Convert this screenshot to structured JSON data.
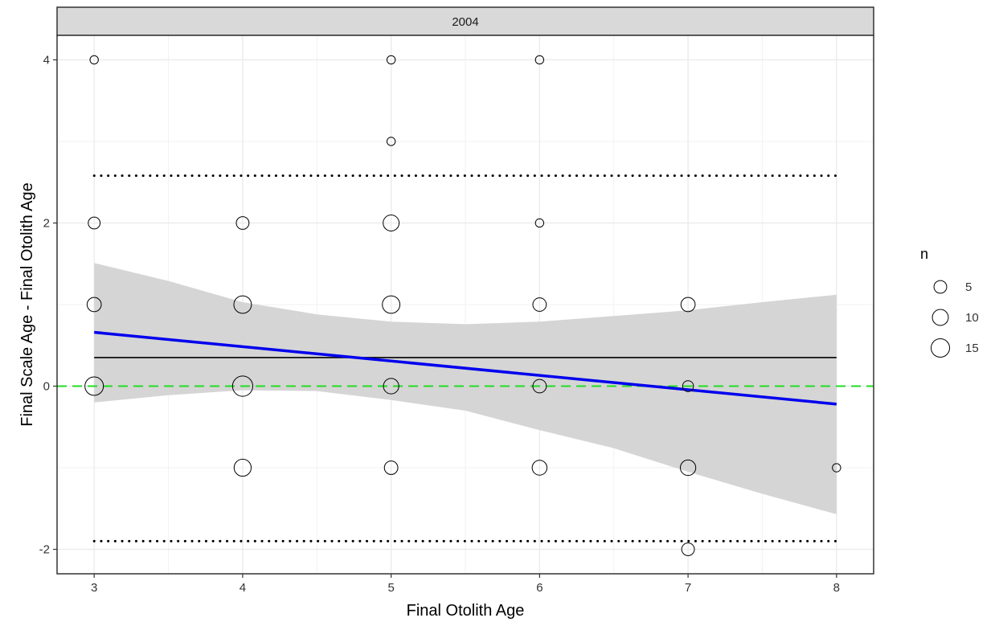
{
  "chart_data": {
    "type": "scatter",
    "facet_label": "2004",
    "xlabel": "Final Otolith Age",
    "ylabel": "Final Scale Age - Final Otolith Age",
    "xlim": [
      2.75,
      8.25
    ],
    "ylim": [
      -2.3,
      4.3
    ],
    "x_ticks": [
      3,
      4,
      5,
      6,
      7,
      8
    ],
    "y_ticks": [
      -2,
      0,
      2,
      4
    ],
    "x_tick_labels": [
      "3",
      "4",
      "5",
      "6",
      "7",
      "8"
    ],
    "y_tick_labels": [
      "-2",
      "0",
      "2",
      "4"
    ],
    "grid": true,
    "points": [
      {
        "x": 3,
        "y": 4,
        "n": 1
      },
      {
        "x": 3,
        "y": 2,
        "n": 4
      },
      {
        "x": 3,
        "y": 1,
        "n": 7
      },
      {
        "x": 3,
        "y": 0,
        "n": 15
      },
      {
        "x": 4,
        "y": 2,
        "n": 5
      },
      {
        "x": 4,
        "y": 1,
        "n": 13
      },
      {
        "x": 4,
        "y": 0,
        "n": 19
      },
      {
        "x": 4,
        "y": -1,
        "n": 12
      },
      {
        "x": 5,
        "y": 4,
        "n": 1
      },
      {
        "x": 5,
        "y": 3,
        "n": 1
      },
      {
        "x": 5,
        "y": 2,
        "n": 10
      },
      {
        "x": 5,
        "y": 1,
        "n": 13
      },
      {
        "x": 5,
        "y": 0,
        "n": 9
      },
      {
        "x": 5,
        "y": -1,
        "n": 6
      },
      {
        "x": 6,
        "y": 4,
        "n": 1
      },
      {
        "x": 6,
        "y": 2,
        "n": 1
      },
      {
        "x": 6,
        "y": 1,
        "n": 6
      },
      {
        "x": 6,
        "y": 0,
        "n": 6
      },
      {
        "x": 6,
        "y": -1,
        "n": 8
      },
      {
        "x": 7,
        "y": 1,
        "n": 7
      },
      {
        "x": 7,
        "y": 0,
        "n": 3
      },
      {
        "x": 7,
        "y": -1,
        "n": 9
      },
      {
        "x": 7,
        "y": -2,
        "n": 5
      },
      {
        "x": 8,
        "y": -1,
        "n": 1
      }
    ],
    "mean_difference": 0.35,
    "upper_limit": 2.58,
    "lower_limit": -1.9,
    "zero_line": 0,
    "fit_line": {
      "x": [
        3,
        8
      ],
      "y": [
        0.66,
        -0.22
      ]
    },
    "confidence_band": [
      {
        "x": 3.0,
        "lower": -0.2,
        "upper": 1.51
      },
      {
        "x": 3.5,
        "lower": -0.11,
        "upper": 1.29
      },
      {
        "x": 4.0,
        "lower": -0.05,
        "upper": 1.03
      },
      {
        "x": 4.5,
        "lower": -0.06,
        "upper": 0.88
      },
      {
        "x": 5.0,
        "lower": -0.17,
        "upper": 0.79
      },
      {
        "x": 5.5,
        "lower": -0.3,
        "upper": 0.76
      },
      {
        "x": 6.0,
        "lower": -0.54,
        "upper": 0.79
      },
      {
        "x": 6.5,
        "lower": -0.76,
        "upper": 0.86
      },
      {
        "x": 7.0,
        "lower": -1.05,
        "upper": 0.93
      },
      {
        "x": 7.5,
        "lower": -1.32,
        "upper": 1.03
      },
      {
        "x": 8.0,
        "lower": -1.57,
        "upper": 1.12
      }
    ],
    "legend": {
      "title": "n",
      "entries": [
        {
          "label": "5",
          "n": 5
        },
        {
          "label": "10",
          "n": 10
        },
        {
          "label": "15",
          "n": 15
        }
      ],
      "position": "right"
    },
    "colors": {
      "fit_line": "#0000ee",
      "confidence_band": "#d3d3d3",
      "zero_line": "#22dd22",
      "mean_line": "#000000",
      "limit_lines": "#000000",
      "points": "#000000",
      "strip": "#d9d9d9",
      "grid": "#ebebeb"
    }
  }
}
